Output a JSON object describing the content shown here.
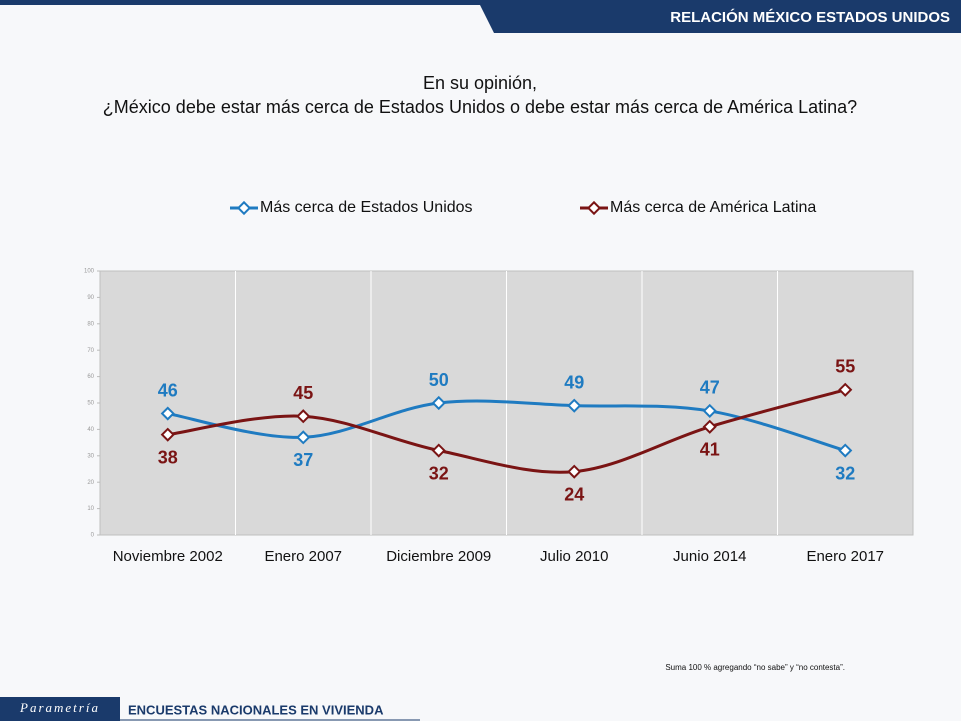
{
  "header": "RELACIÓN MÉXICO ESTADOS UNIDOS",
  "chart_data": {
    "type": "line",
    "title": "En su opinión,",
    "subtitle": "¿México debe estar más cerca de Estados Unidos o debe estar más cerca de América Latina?",
    "categories": [
      "Noviembre 2002",
      "Enero 2007",
      "Diciembre 2009",
      "Julio 2010",
      "Junio 2014",
      "Enero 2017"
    ],
    "series": [
      {
        "name": "Más cerca de Estados Unidos",
        "color": "#1f7bc1",
        "values": [
          46,
          37,
          50,
          49,
          47,
          32
        ]
      },
      {
        "name": "Más cerca de América Latina",
        "color": "#7a1414",
        "values": [
          38,
          45,
          32,
          24,
          41,
          55
        ]
      }
    ],
    "ylim": [
      0,
      100
    ],
    "yticks": [
      0,
      10,
      20,
      30,
      40,
      50,
      60,
      70,
      80,
      90,
      100
    ],
    "smooth": true,
    "legend": "top",
    "footnote": "Suma 100 %  agregando “no sabe” y “no contesta”."
  },
  "footer": {
    "brand": "Parametría",
    "text": "ENCUESTAS NACIONALES EN VIVIENDA"
  }
}
